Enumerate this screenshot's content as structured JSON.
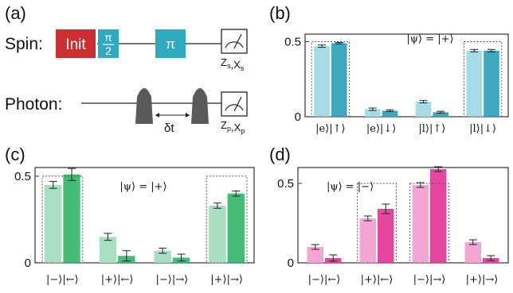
{
  "diagram": {
    "panel_a_letter": "(a)",
    "spin_label": "Spin:",
    "init_label": "Init",
    "half_pi_num": "π",
    "half_pi_den": "2",
    "pi_label": "π",
    "photon_label": "Photon:",
    "delay_label": "δt",
    "spin_meas_label": "Zs,Xs",
    "photon_meas_label": "Zp,Xp",
    "colors": {
      "init": "#cc2e32",
      "pulse": "#2ea9c0",
      "photon": "#5a5a5a"
    }
  },
  "chart_data": [
    {
      "panel": "(b)",
      "type": "bar",
      "annotation": "|ψ⟩ = |+⟩",
      "categories": [
        "|e⟩|↑⟩",
        "|e⟩|↓⟩",
        "|l⟩|↑⟩",
        "|l⟩|↓⟩"
      ],
      "ylim": [
        0,
        0.55
      ],
      "yticks": [
        0,
        0.5
      ],
      "yticklabels": [
        "0",
        "0.5"
      ],
      "ideal": [
        0.5,
        0,
        0,
        0.5
      ],
      "series": [
        {
          "values": [
            0.47,
            0.05,
            0.1,
            0.44
          ],
          "errors": [
            0.008,
            0.008,
            0.008,
            0.008
          ],
          "color": "#a8dbe5"
        },
        {
          "values": [
            0.49,
            0.04,
            0.03,
            0.44
          ],
          "errors": [
            0.005,
            0.006,
            0.006,
            0.008
          ],
          "color": "#3ea8bf"
        }
      ]
    },
    {
      "panel": "(c)",
      "type": "bar",
      "annotation": "|ψ⟩ = |+⟩",
      "categories": [
        "|−⟩|←⟩",
        "|+⟩|←⟩",
        "|−⟩|→⟩",
        "|+⟩|→⟩"
      ],
      "ylim": [
        0,
        0.55
      ],
      "yticks": [
        0,
        0.5
      ],
      "yticklabels": [
        "0",
        "0.5"
      ],
      "ideal": [
        0.5,
        0,
        0,
        0.5
      ],
      "series": [
        {
          "values": [
            0.45,
            0.15,
            0.07,
            0.33
          ],
          "errors": [
            0.02,
            0.02,
            0.015,
            0.015
          ],
          "color": "#a8dfc0"
        },
        {
          "values": [
            0.51,
            0.04,
            0.03,
            0.4
          ],
          "errors": [
            0.035,
            0.03,
            0.02,
            0.015
          ],
          "color": "#45bb78"
        }
      ]
    },
    {
      "panel": "(d)",
      "type": "bar",
      "annotation": "|ψ⟩ = |−⟩",
      "categories": [
        "|−⟩|←⟩",
        "|+⟩|←⟩",
        "|−⟩|→⟩",
        "|+⟩|→⟩"
      ],
      "ylim": [
        0,
        0.6
      ],
      "yticks": [
        0,
        0.5
      ],
      "yticklabels": [
        "0",
        "0.5"
      ],
      "ideal": [
        0,
        0.5,
        0.5,
        0
      ],
      "series": [
        {
          "values": [
            0.1,
            0.28,
            0.49,
            0.13
          ],
          "errors": [
            0.015,
            0.015,
            0.015,
            0.015
          ],
          "color": "#f4a6d2"
        },
        {
          "values": [
            0.03,
            0.34,
            0.59,
            0.03
          ],
          "errors": [
            0.02,
            0.03,
            0.015,
            0.015
          ],
          "color": "#e446a0"
        }
      ]
    }
  ]
}
